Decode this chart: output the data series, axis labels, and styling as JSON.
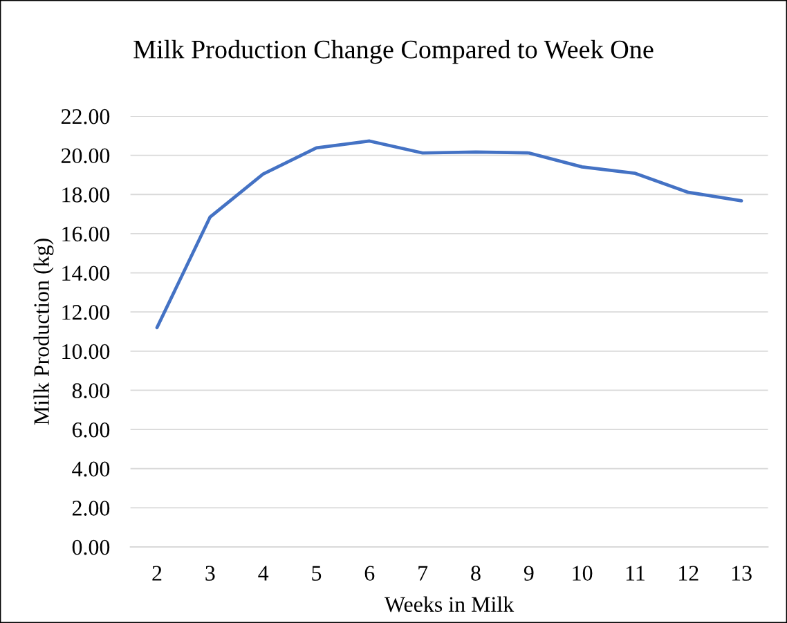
{
  "chart_data": {
    "type": "line",
    "title": "Milk Production Change Compared to Week One",
    "xlabel": "Weeks in Milk",
    "ylabel": "Milk Production (kg)",
    "categories": [
      "2",
      "3",
      "4",
      "5",
      "6",
      "7",
      "8",
      "9",
      "10",
      "11",
      "12",
      "13"
    ],
    "series": [
      {
        "color": "#4472c4",
        "values": [
          11.2,
          16.85,
          19.05,
          20.38,
          20.73,
          20.12,
          20.17,
          20.12,
          19.41,
          19.08,
          18.11,
          17.68
        ]
      }
    ],
    "ylim": [
      0,
      22
    ],
    "yticks": [
      {
        "value": 0,
        "label": "0.00"
      },
      {
        "value": 2,
        "label": "2.00"
      },
      {
        "value": 4,
        "label": "4.00"
      },
      {
        "value": 6,
        "label": "6.00"
      },
      {
        "value": 8,
        "label": "8.00"
      },
      {
        "value": 10,
        "label": "10.00"
      },
      {
        "value": 12,
        "label": "12.00"
      },
      {
        "value": 14,
        "label": "14.00"
      },
      {
        "value": 16,
        "label": "16.00"
      },
      {
        "value": 18,
        "label": "18.00"
      },
      {
        "value": 20,
        "label": "20.00"
      },
      {
        "value": 22,
        "label": "22.00"
      }
    ],
    "grid": "y",
    "line_style": "solid"
  }
}
